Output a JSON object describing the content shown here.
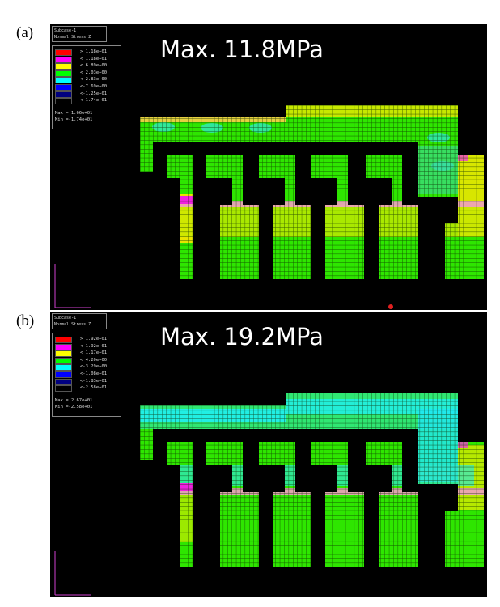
{
  "panels": [
    {
      "label": "(a)",
      "subcase": "Subcase-1",
      "result_type": "Normal Stress Z",
      "legend": {
        "colors": [
          "#ff0000",
          "#ff00ff",
          "#ffff00",
          "#00ff00",
          "#00ffff",
          "#0000ff",
          "#000080",
          "#000000"
        ],
        "values": [
          "> 1.18e+01",
          "< 1.18e+01",
          "< 6.89e+00",
          "< 2.03e+00",
          "<-2.83e+00",
          "<-7.69e+00",
          "<-1.25e+01",
          "<-1.74e+01"
        ]
      },
      "max_text": "Max = 1.66e+01",
      "min_text": "Min =-1.74e+01",
      "annotation": "Max. 11.8MPa"
    },
    {
      "label": "(b)",
      "subcase": "Subcase-1",
      "result_type": "Normal Stress Z",
      "legend": {
        "colors": [
          "#ff0000",
          "#ff00ff",
          "#ffff00",
          "#00ff00",
          "#00ffff",
          "#0000ff",
          "#000080",
          "#000000"
        ],
        "values": [
          "> 1.92e+01",
          "< 1.92e+01",
          "< 1.17e+01",
          "< 4.20e+00",
          "<-3.29e+00",
          "<-1.08e+01",
          "<-1.83e+01",
          "<-2.58e+01"
        ]
      },
      "max_text": "Max = 2.67e+01",
      "min_text": "Min =-2.58e+01",
      "annotation": "Max. 19.2MPa"
    }
  ]
}
